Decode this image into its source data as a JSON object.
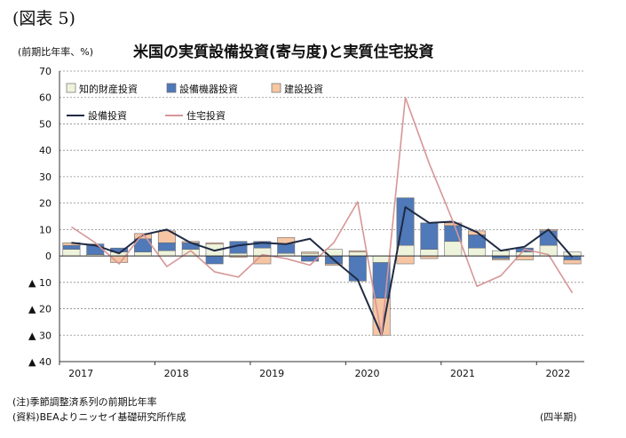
{
  "figure_label": "(図表 5)",
  "unit_label": "(前期比年率、%)",
  "title": "米国の実質設備投資(寄与度)と実質住宅投資",
  "notes": {
    "note": "(注)季節調整済系列の前期比年率",
    "source": "(資料)BEAよりニッセイ基礎研究所作成",
    "period": "(四半期)"
  },
  "colors": {
    "ip": "#eef3dc",
    "equip": "#4f79b8",
    "struct": "#f6c6a4",
    "bar_edge": "#6d6d6d",
    "line_total": "#1f2a44",
    "line_res": "#d79696"
  },
  "chart_data": {
    "type": "bar",
    "stacked": true,
    "title": "米国の実質設備投資(寄与度)と実質住宅投資",
    "ylabel": "(前期比年率、%)",
    "ylim": [
      -40,
      70
    ],
    "yticks": [
      70,
      60,
      50,
      40,
      30,
      20,
      10,
      0,
      -10,
      -20,
      -30,
      -40
    ],
    "ytick_labels": [
      "70",
      "60",
      "50",
      "40",
      "30",
      "20",
      "10",
      "0",
      "▲ 10",
      "▲ 20",
      "▲ 30",
      "▲ 40"
    ],
    "grid": "horizontal dashed",
    "legend_position": "top-left",
    "x_year_labels": [
      "2017",
      "2018",
      "2019",
      "2020",
      "2021",
      "2022"
    ],
    "year_start_index": [
      0,
      4,
      8,
      12,
      16,
      20
    ],
    "x_quarters": [
      "2017Q1",
      "2017Q2",
      "2017Q3",
      "2017Q4",
      "2018Q1",
      "2018Q2",
      "2018Q3",
      "2018Q4",
      "2019Q1",
      "2019Q2",
      "2019Q3",
      "2019Q4",
      "2020Q1",
      "2020Q2",
      "2020Q3",
      "2020Q4",
      "2021Q1",
      "2021Q2",
      "2021Q3",
      "2021Q4",
      "2022Q1",
      "2022Q2"
    ],
    "series": [
      {
        "name": "知的財産投資",
        "kind": "bar",
        "color_key": "ip",
        "values": [
          2.5,
          0.5,
          1.5,
          1.5,
          2.0,
          2.5,
          4.5,
          1.0,
          3.0,
          1.0,
          1.0,
          2.5,
          1.5,
          -2.5,
          4.0,
          2.5,
          5.5,
          3.0,
          2.0,
          1.5,
          4.0,
          1.5
        ]
      },
      {
        "name": "設備機器投資",
        "kind": "bar",
        "color_key": "equip",
        "values": [
          1.5,
          4.0,
          1.5,
          5.0,
          3.0,
          2.5,
          -3.0,
          4.5,
          2.5,
          3.5,
          -2.0,
          -3.0,
          -9.5,
          -13.5,
          18.0,
          10.0,
          6.0,
          5.0,
          -1.0,
          1.5,
          5.5,
          -1.5
        ]
      },
      {
        "name": "建設投資",
        "kind": "bar",
        "color_key": "struct",
        "values": [
          1.0,
          0.0,
          -2.5,
          2.0,
          4.5,
          0.5,
          0.5,
          -0.5,
          -3.0,
          2.5,
          0.5,
          -0.5,
          0.5,
          -14.0,
          -3.0,
          -1.0,
          1.0,
          1.5,
          -0.5,
          -1.5,
          0.5,
          -1.5
        ]
      },
      {
        "name": "設備投資",
        "kind": "line",
        "color_key": "line_total",
        "values": [
          5.0,
          4.0,
          1.0,
          8.0,
          10.0,
          5.0,
          2.0,
          4.0,
          5.0,
          4.5,
          6.5,
          -1.5,
          -9.0,
          -30.0,
          18.5,
          12.5,
          13.0,
          9.0,
          2.0,
          3.5,
          10.0,
          -0.5
        ]
      },
      {
        "name": "住宅投資",
        "kind": "line",
        "color_key": "line_res",
        "values": [
          11.0,
          5.0,
          -3.0,
          8.5,
          -4.0,
          2.0,
          -6.0,
          -8.0,
          0.5,
          -1.0,
          -3.5,
          5.0,
          20.5,
          -30.0,
          60.0,
          35.0,
          13.0,
          -11.5,
          -7.5,
          2.5,
          0.5,
          -14.0
        ]
      }
    ]
  }
}
